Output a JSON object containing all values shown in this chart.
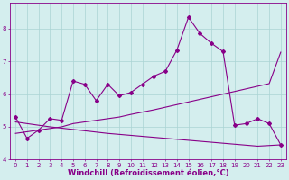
{
  "x": [
    0,
    1,
    2,
    3,
    4,
    5,
    6,
    7,
    8,
    9,
    10,
    11,
    12,
    13,
    14,
    15,
    16,
    17,
    18,
    19,
    20,
    21,
    22,
    23
  ],
  "y_main": [
    5.3,
    4.65,
    4.9,
    5.25,
    5.2,
    6.4,
    6.3,
    5.8,
    6.3,
    5.95,
    6.05,
    6.3,
    6.55,
    6.7,
    7.35,
    8.35,
    7.85,
    7.55,
    7.3,
    5.05,
    5.1,
    5.25,
    5.1,
    4.45
  ],
  "y_trend_up": [
    4.8,
    4.85,
    4.9,
    4.95,
    5.0,
    5.1,
    5.15,
    5.2,
    5.25,
    5.3,
    5.38,
    5.45,
    5.52,
    5.6,
    5.68,
    5.76,
    5.84,
    5.92,
    6.0,
    6.08,
    6.16,
    6.24,
    6.32,
    7.28
  ],
  "y_trend_down": [
    5.15,
    5.1,
    5.05,
    5.0,
    4.96,
    4.92,
    4.88,
    4.84,
    4.8,
    4.77,
    4.74,
    4.71,
    4.68,
    4.65,
    4.62,
    4.59,
    4.56,
    4.53,
    4.5,
    4.47,
    4.44,
    4.41,
    4.43,
    4.45
  ],
  "bg_color": "#d4eeee",
  "grid_color": "#aad4d4",
  "line_color": "#880088",
  "xlabel": "Windchill (Refroidissement éolien,°C)",
  "ylim": [
    4.0,
    8.8
  ],
  "xlim_min": -0.5,
  "xlim_max": 23.5,
  "yticks": [
    4,
    5,
    6,
    7,
    8
  ],
  "xticks": [
    0,
    1,
    2,
    3,
    4,
    5,
    6,
    7,
    8,
    9,
    10,
    11,
    12,
    13,
    14,
    15,
    16,
    17,
    18,
    19,
    20,
    21,
    22,
    23
  ],
  "tick_fontsize": 5.0,
  "xlabel_fontsize": 6.0,
  "marker": "D",
  "markersize": 2.0,
  "linewidth": 0.8
}
